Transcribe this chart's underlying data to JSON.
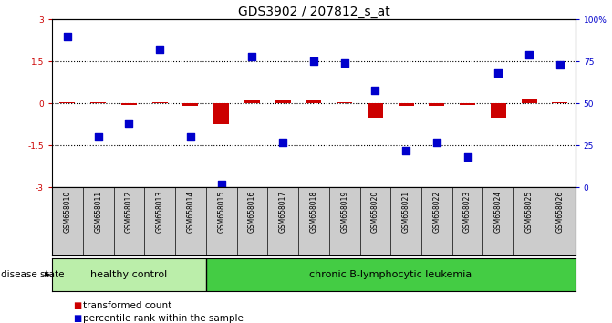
{
  "title": "GDS3902 / 207812_s_at",
  "samples": [
    "GSM658010",
    "GSM658011",
    "GSM658012",
    "GSM658013",
    "GSM658014",
    "GSM658015",
    "GSM658016",
    "GSM658017",
    "GSM658018",
    "GSM658019",
    "GSM658020",
    "GSM658021",
    "GSM658022",
    "GSM658023",
    "GSM658024",
    "GSM658025",
    "GSM658026"
  ],
  "transformed_count": [
    0.05,
    0.04,
    -0.04,
    0.05,
    -0.08,
    -0.75,
    0.12,
    0.12,
    0.1,
    0.05,
    -0.5,
    -0.08,
    -0.08,
    -0.07,
    -0.5,
    0.18,
    0.05
  ],
  "percentile_rank_pct": [
    90,
    30,
    38,
    82,
    30,
    2,
    78,
    27,
    75,
    74,
    58,
    22,
    27,
    18,
    68,
    79,
    73
  ],
  "group_labels": [
    "healthy control",
    "chronic B-lymphocytic leukemia"
  ],
  "hc_count": 5,
  "total_count": 17,
  "ylim": [
    -3,
    3
  ],
  "yticks_left": [
    -3,
    -1.5,
    0,
    1.5,
    3
  ],
  "yticks_right": [
    0,
    25,
    50,
    75,
    100
  ],
  "hlines": [
    -1.5,
    0,
    1.5
  ],
  "red_color": "#cc0000",
  "blue_color": "#0000cc",
  "bar_width": 0.5,
  "dot_size": 30,
  "background_color": "#ffffff",
  "label_strip_color": "#cccccc",
  "hc_color": "#bbeeaa",
  "cbl_color": "#44cc44",
  "legend_labels": [
    "transformed count",
    "percentile rank within the sample"
  ],
  "disease_state_label": "disease state",
  "title_fontsize": 10,
  "tick_fontsize": 6.5,
  "sample_fontsize": 5.5,
  "group_fontsize": 8,
  "legend_fontsize": 7.5
}
